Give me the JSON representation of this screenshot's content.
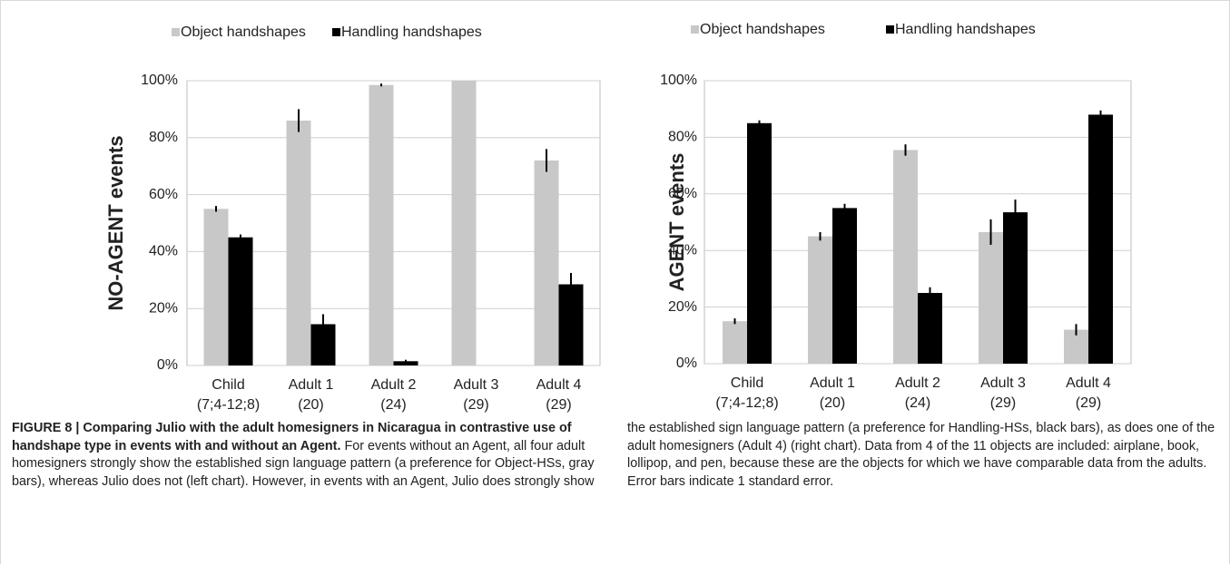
{
  "chart_data": [
    {
      "type": "bar",
      "ylabel": "NO-AGENT events",
      "categories": [
        [
          "Child",
          "(7;4-12;8)"
        ],
        [
          "Adult 1",
          "(20)"
        ],
        [
          "Adult 2",
          "(24)"
        ],
        [
          "Adult 3",
          "(29)"
        ],
        [
          "Adult 4",
          "(29)"
        ]
      ],
      "series": [
        {
          "name": "Object handshapes",
          "color": "#c8c8c8",
          "values": [
            55,
            86,
            98.5,
            100,
            72
          ],
          "errors": [
            1,
            4,
            0.5,
            0,
            4
          ]
        },
        {
          "name": "Handling handshapes",
          "color": "#000000",
          "values": [
            45,
            14.5,
            1.5,
            0,
            28.5
          ],
          "errors": [
            1,
            3.5,
            0.5,
            0,
            4
          ]
        }
      ],
      "ylim": [
        0,
        100
      ],
      "yticks": [
        {
          "value": 0,
          "label": "0%"
        },
        {
          "value": 20,
          "label": "20%"
        },
        {
          "value": 40,
          "label": "40%"
        },
        {
          "value": 60,
          "label": "60%"
        },
        {
          "value": 80,
          "label": "80%"
        },
        {
          "value": 100,
          "label": "100%"
        }
      ],
      "grid": true,
      "legend": "top"
    },
    {
      "type": "bar",
      "ylabel": "AGENT events",
      "categories": [
        [
          "Child",
          "(7;4-12;8)"
        ],
        [
          "Adult 1",
          "(20)"
        ],
        [
          "Adult 2",
          "(24)"
        ],
        [
          "Adult 3",
          "(29)"
        ],
        [
          "Adult 4",
          "(29)"
        ]
      ],
      "series": [
        {
          "name": "Object handshapes",
          "color": "#c8c8c8",
          "values": [
            15,
            45,
            75.5,
            46.5,
            12
          ],
          "errors": [
            1,
            1.5,
            2,
            4.5,
            2
          ]
        },
        {
          "name": "Handling handshapes",
          "color": "#000000",
          "values": [
            85,
            55,
            25,
            53.5,
            88
          ],
          "errors": [
            1,
            1.5,
            2,
            4.5,
            1.5
          ]
        }
      ],
      "ylim": [
        0,
        100
      ],
      "yticks": [
        {
          "value": 0,
          "label": "0%"
        },
        {
          "value": 20,
          "label": "20%"
        },
        {
          "value": 40,
          "label": "40%"
        },
        {
          "value": 60,
          "label": "60%"
        },
        {
          "value": 80,
          "label": "80%"
        },
        {
          "value": 100,
          "label": "100%"
        }
      ],
      "grid": true,
      "legend": "top"
    }
  ],
  "caption": {
    "label": "FIGURE 8 |",
    "title": "Comparing Julio with the adult homesigners in Nicaragua in contrastive use of handshape type in events with and without an Agent.",
    "text": "For events without an Agent, all four adult homesigners strongly show the established sign language pattern (a preference for Object-HSs, gray bars), whereas Julio does not (left chart). However, in events with an Agent, Julio does strongly show the established sign language pattern (a preference for Handling-HSs, black bars), as does one of the adult homesigners (Adult 4) (right chart). Data from 4 of the 11 objects are included: airplane, book, lollipop, and pen, because these are the objects for which we have comparable data from the adults. Error bars indicate 1 standard error."
  }
}
